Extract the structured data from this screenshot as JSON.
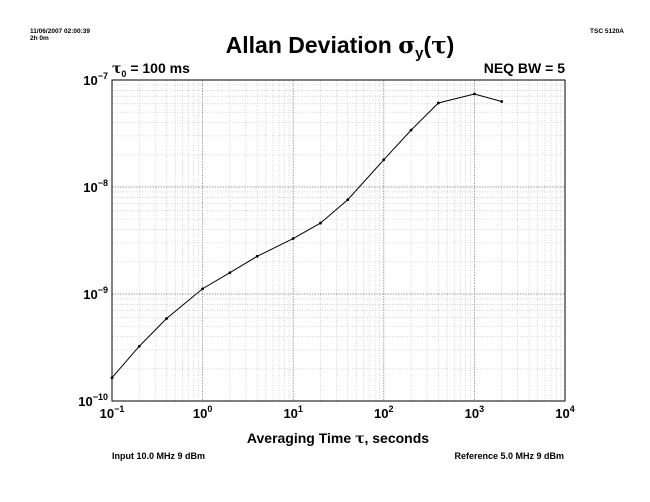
{
  "header": {
    "timestamp": "11/06/2007 02:00:39",
    "duration": "2h 0m",
    "instrument": "TSC 5120A"
  },
  "annotations": {
    "tau0_label": "τ",
    "tau0_sub": "0",
    "tau0_value": " = 100 ms",
    "neq_bw": "NEQ BW = 5"
  },
  "footer": {
    "input": "Input 10.0 MHz 9 dBm",
    "reference": "Reference 5.0 MHz 9 dBm"
  },
  "chart_data": {
    "type": "line",
    "title_main": "Allan Deviation ",
    "title_sigma": "σ",
    "title_sub": "y",
    "title_paren_open": "(",
    "title_tau": "τ",
    "title_paren_close": ")",
    "xlabel_prefix": "Averaging Time ",
    "xlabel_tau": "τ",
    "xlabel_suffix": ", seconds",
    "x_scale": "log",
    "y_scale": "log",
    "xlim": [
      0.1,
      10000
    ],
    "ylim": [
      1e-10,
      1e-07
    ],
    "x_ticks": [
      {
        "base": "10",
        "exp": "−1",
        "value": 0.1
      },
      {
        "base": "10",
        "exp": "0",
        "value": 1
      },
      {
        "base": "10",
        "exp": "1",
        "value": 10
      },
      {
        "base": "10",
        "exp": "2",
        "value": 100
      },
      {
        "base": "10",
        "exp": "3",
        "value": 1000
      },
      {
        "base": "10",
        "exp": "4",
        "value": 10000
      }
    ],
    "y_ticks": [
      {
        "base": "10",
        "exp": "−10",
        "value": 1e-10
      },
      {
        "base": "10",
        "exp": "−9",
        "value": 1e-09
      },
      {
        "base": "10",
        "exp": "−8",
        "value": 1e-08
      },
      {
        "base": "10",
        "exp": "−7",
        "value": 1e-07
      }
    ],
    "grid": true,
    "series": [
      {
        "x": [
          0.1,
          0.2,
          0.4,
          1,
          2,
          4,
          10,
          20,
          40,
          100,
          200,
          400,
          1000,
          2000
        ],
        "y": [
          1.65e-10,
          3.25e-10,
          5.9e-10,
          1.12e-09,
          1.58e-09,
          2.25e-09,
          3.3e-09,
          4.6e-09,
          7.6e-09,
          1.8e-08,
          3.4e-08,
          6.1e-08,
          7.4e-08,
          6.3e-08
        ]
      }
    ]
  }
}
